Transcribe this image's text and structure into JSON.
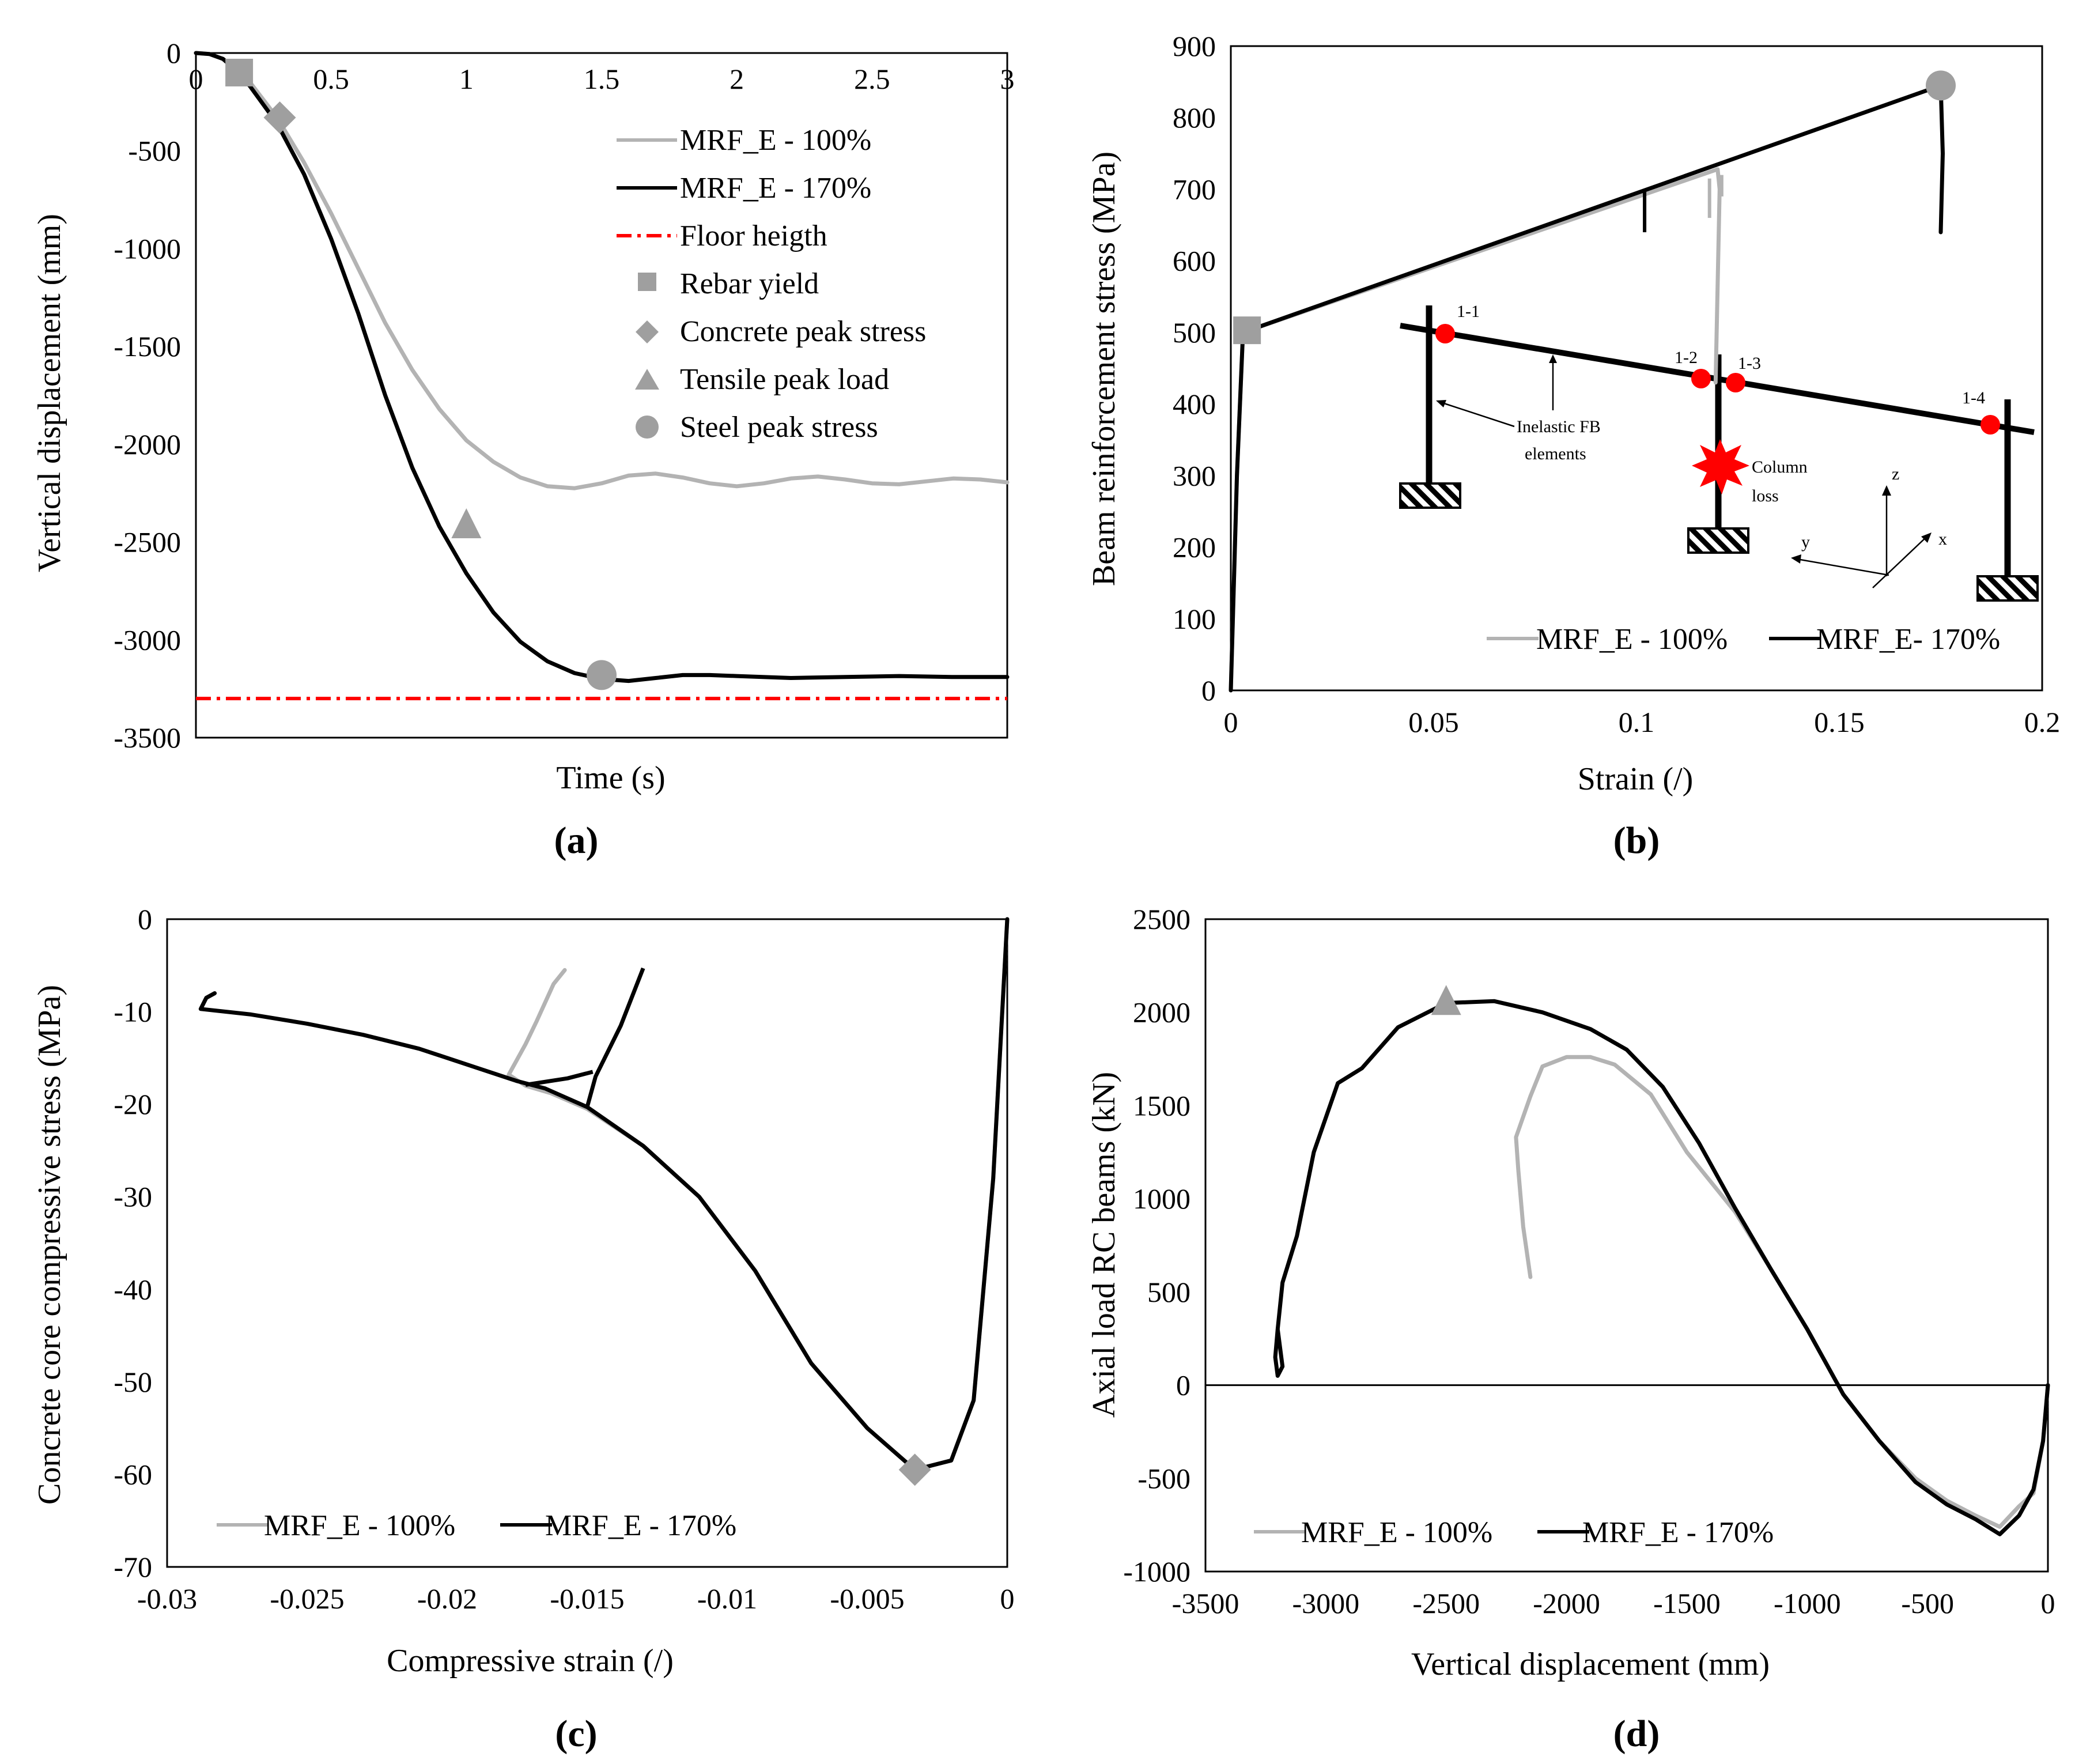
{
  "colors": {
    "series_100": "#b3b3b3",
    "series_170": "#000000",
    "floor": "#ff0000",
    "marker": "#9f9f9f",
    "inset_node": "#ff0000"
  },
  "chart_data": [
    {
      "id": "a",
      "type": "line",
      "caption": "(a)",
      "xlabel": "Time (s)",
      "ylabel": "Vertical displacement (mm)",
      "xlim": [
        0,
        3
      ],
      "ylim": [
        -3500,
        0
      ],
      "xticks": [
        "0",
        "0.5",
        "1",
        "1.5",
        "2",
        "2.5",
        "3"
      ],
      "yticks": [
        "0",
        "-500",
        "-1000",
        "-1500",
        "-2000",
        "-2500",
        "-3000",
        "-3500"
      ],
      "legend": [
        "MRF_E - 100%",
        "MRF_E - 170%",
        "Floor heigth",
        "Rebar yield",
        "Concrete peak stress",
        "Tensile peak load",
        "Steel peak stress"
      ],
      "series": [
        {
          "name": "MRF_E - 100%",
          "points": [
            [
              0,
              0
            ],
            [
              0.05,
              -5
            ],
            [
              0.1,
              -30
            ],
            [
              0.15,
              -80
            ],
            [
              0.2,
              -150
            ],
            [
              0.3,
              -330
            ],
            [
              0.4,
              -560
            ],
            [
              0.5,
              -820
            ],
            [
              0.6,
              -1100
            ],
            [
              0.7,
              -1380
            ],
            [
              0.8,
              -1620
            ],
            [
              0.9,
              -1820
            ],
            [
              1.0,
              -1980
            ],
            [
              1.1,
              -2090
            ],
            [
              1.2,
              -2170
            ],
            [
              1.3,
              -2215
            ],
            [
              1.4,
              -2225
            ],
            [
              1.5,
              -2200
            ],
            [
              1.6,
              -2160
            ],
            [
              1.7,
              -2150
            ],
            [
              1.8,
              -2170
            ],
            [
              1.9,
              -2200
            ],
            [
              2.0,
              -2215
            ],
            [
              2.1,
              -2200
            ],
            [
              2.2,
              -2175
            ],
            [
              2.3,
              -2165
            ],
            [
              2.4,
              -2180
            ],
            [
              2.5,
              -2200
            ],
            [
              2.6,
              -2205
            ],
            [
              2.7,
              -2190
            ],
            [
              2.8,
              -2175
            ],
            [
              2.9,
              -2180
            ],
            [
              3.0,
              -2195
            ]
          ]
        },
        {
          "name": "MRF_E - 170%",
          "points": [
            [
              0,
              0
            ],
            [
              0.05,
              -5
            ],
            [
              0.1,
              -30
            ],
            [
              0.15,
              -90
            ],
            [
              0.2,
              -170
            ],
            [
              0.3,
              -360
            ],
            [
              0.4,
              -620
            ],
            [
              0.5,
              -950
            ],
            [
              0.6,
              -1330
            ],
            [
              0.7,
              -1750
            ],
            [
              0.8,
              -2120
            ],
            [
              0.9,
              -2420
            ],
            [
              1.0,
              -2660
            ],
            [
              1.1,
              -2860
            ],
            [
              1.2,
              -3010
            ],
            [
              1.3,
              -3110
            ],
            [
              1.4,
              -3170
            ],
            [
              1.5,
              -3200
            ],
            [
              1.6,
              -3210
            ],
            [
              1.7,
              -3195
            ],
            [
              1.8,
              -3180
            ],
            [
              1.9,
              -3180
            ],
            [
              2.0,
              -3185
            ],
            [
              2.2,
              -3195
            ],
            [
              2.4,
              -3190
            ],
            [
              2.6,
              -3185
            ],
            [
              2.8,
              -3190
            ],
            [
              3.0,
              -3190
            ]
          ]
        }
      ],
      "floor_level": -3300,
      "markers": [
        {
          "name": "Rebar yield",
          "shape": "square",
          "x": 0.16,
          "y": -100
        },
        {
          "name": "Concrete peak stress",
          "shape": "diamond",
          "x": 0.31,
          "y": -330
        },
        {
          "name": "Tensile peak load",
          "shape": "triangle",
          "x": 1.0,
          "y": -2410
        },
        {
          "name": "Steel peak stress",
          "shape": "circle",
          "x": 1.5,
          "y": -3180
        }
      ]
    },
    {
      "id": "b",
      "type": "line",
      "caption": "(b)",
      "xlabel": "Strain (/)",
      "ylabel": "Beam reinforcement stress (MPa)",
      "xlim": [
        0,
        0.2
      ],
      "ylim": [
        0,
        900
      ],
      "xticks": [
        "0",
        "0.05",
        "0.1",
        "0.15",
        "0.2"
      ],
      "yticks": [
        "0",
        "100",
        "200",
        "300",
        "400",
        "500",
        "600",
        "700",
        "800",
        "900"
      ],
      "legend": [
        "MRF_E - 100%",
        "MRF_E- 170%"
      ],
      "series": [
        {
          "name": "MRF_E - 100%",
          "points": [
            [
              0,
              0
            ],
            [
              0.0015,
              300
            ],
            [
              0.003,
              500
            ],
            [
              0.12,
              728
            ],
            [
              0.1205,
              700
            ],
            [
              0.1195,
              430
            ]
          ]
        },
        {
          "name": "MRF_E- 170%",
          "points": [
            [
              0,
              0
            ],
            [
              0.0015,
              300
            ],
            [
              0.003,
              500
            ],
            [
              0.175,
              845
            ],
            [
              0.1755,
              750
            ],
            [
              0.175,
              640
            ]
          ]
        }
      ],
      "spikes_100": [
        [
          0.118,
          715,
          660
        ],
        [
          0.121,
          720,
          690
        ]
      ],
      "spikes_170": [
        [
          0.102,
          700,
          640
        ]
      ],
      "markers": [
        {
          "name": "Rebar yield",
          "shape": "square",
          "x": 0.004,
          "y": 503
        },
        {
          "name": "Steel peak stress",
          "shape": "circle",
          "x": 0.175,
          "y": 845
        }
      ],
      "inset": {
        "node_labels": [
          "1-1",
          "1-2",
          "1-3",
          "1-4"
        ],
        "element_label": "Inelastic FB elements",
        "loss_label": "Column loss",
        "axes_labels": [
          "z",
          "y",
          "x"
        ]
      }
    },
    {
      "id": "c",
      "type": "line",
      "caption": "(c)",
      "xlabel": "Compressive strain (/)",
      "ylabel": "Concrete core compressive stress (MPa)",
      "xlim": [
        -0.03,
        0
      ],
      "ylim": [
        -70,
        0
      ],
      "xticks": [
        "-0.03",
        "-0.025",
        "-0.02",
        "-0.015",
        "-0.01",
        "-0.005",
        "0"
      ],
      "yticks": [
        "0",
        "-10",
        "-20",
        "-30",
        "-40",
        "-50",
        "-60",
        "-70"
      ],
      "legend": [
        "MRF_E - 100%",
        "MRF_E - 170%"
      ],
      "series": [
        {
          "name": "MRF_E - 100%",
          "points": [
            [
              0,
              0
            ],
            [
              -0.0005,
              -28
            ],
            [
              -0.0012,
              -52
            ],
            [
              -0.002,
              -58.5
            ],
            [
              -0.0033,
              -59.5
            ],
            [
              -0.005,
              -55
            ],
            [
              -0.007,
              -48
            ],
            [
              -0.009,
              -38
            ],
            [
              -0.011,
              -30
            ],
            [
              -0.013,
              -24.5
            ],
            [
              -0.015,
              -20.5
            ],
            [
              -0.0163,
              -18.8
            ],
            [
              -0.0172,
              -18
            ],
            [
              -0.0178,
              -16.8
            ],
            [
              -0.0172,
              -13.5
            ],
            [
              -0.0168,
              -11
            ],
            [
              -0.0162,
              -7
            ],
            [
              -0.0158,
              -5.5
            ]
          ]
        },
        {
          "name": "MRF_E - 170%",
          "points": [
            [
              0,
              0
            ],
            [
              -0.0005,
              -28
            ],
            [
              -0.0012,
              -52
            ],
            [
              -0.002,
              -58.5
            ],
            [
              -0.0033,
              -59.5
            ],
            [
              -0.005,
              -55
            ],
            [
              -0.007,
              -48
            ],
            [
              -0.009,
              -38
            ],
            [
              -0.011,
              -30
            ],
            [
              -0.013,
              -24.5
            ],
            [
              -0.015,
              -20.3
            ],
            [
              -0.0165,
              -18.3
            ],
            [
              -0.0175,
              -17.5
            ],
            [
              -0.019,
              -16
            ],
            [
              -0.021,
              -14
            ],
            [
              -0.023,
              -12.5
            ],
            [
              -0.025,
              -11.3
            ],
            [
              -0.027,
              -10.3
            ],
            [
              -0.0288,
              -9.7
            ],
            [
              -0.0286,
              -8.5
            ],
            [
              -0.0283,
              -8
            ]
          ]
        }
      ],
      "branches_170": [
        [
          [
            -0.015,
            -20.3
          ],
          [
            -0.0147,
            -17
          ],
          [
            -0.0138,
            -11.5
          ],
          [
            -0.013,
            -5.3
          ]
        ],
        [
          [
            -0.0172,
            -17.9
          ],
          [
            -0.0157,
            -17.2
          ],
          [
            -0.0148,
            -16.5
          ]
        ]
      ],
      "markers": [
        {
          "name": "Concrete peak stress",
          "shape": "diamond",
          "x": -0.0033,
          "y": -59.5
        }
      ]
    },
    {
      "id": "d",
      "type": "line",
      "caption": "(d)",
      "xlabel": "Vertical displacement (mm)",
      "ylabel": "Axial load RC beams (kN)",
      "xlim": [
        -3500,
        0
      ],
      "ylim": [
        -1000,
        2500
      ],
      "xticks": [
        "-3500",
        "-3000",
        "-2500",
        "-2000",
        "-1500",
        "-1000",
        "-500",
        "0"
      ],
      "yticks": [
        "2500",
        "2000",
        "1500",
        "1000",
        "500",
        "0",
        "-500",
        "-1000"
      ],
      "legend": [
        "MRF_E - 100%",
        "MRF_E - 170%"
      ],
      "series": [
        {
          "name": "MRF_E - 100%",
          "points": [
            [
              0,
              0
            ],
            [
              -20,
              -300
            ],
            [
              -60,
              -580
            ],
            [
              -120,
              -650
            ],
            [
              -200,
              -760
            ],
            [
              -300,
              -700
            ],
            [
              -420,
              -620
            ],
            [
              -550,
              -500
            ],
            [
              -700,
              -300
            ],
            [
              -850,
              -50
            ],
            [
              -1000,
              300
            ],
            [
              -1150,
              620
            ],
            [
              -1300,
              930
            ],
            [
              -1500,
              1250
            ],
            [
              -1650,
              1560
            ],
            [
              -1800,
              1720
            ],
            [
              -1900,
              1760
            ],
            [
              -2000,
              1760
            ],
            [
              -2100,
              1710
            ],
            [
              -2150,
              1550
            ],
            [
              -2210,
              1330
            ],
            [
              -2200,
              1150
            ],
            [
              -2180,
              850
            ],
            [
              -2150,
              580
            ]
          ]
        },
        {
          "name": "MRF_E - 170%",
          "points": [
            [
              0,
              0
            ],
            [
              -20,
              -300
            ],
            [
              -60,
              -560
            ],
            [
              -120,
              -700
            ],
            [
              -200,
              -800
            ],
            [
              -300,
              -720
            ],
            [
              -420,
              -640
            ],
            [
              -550,
              -520
            ],
            [
              -700,
              -300
            ],
            [
              -850,
              -50
            ],
            [
              -1000,
              300
            ],
            [
              -1150,
              620
            ],
            [
              -1300,
              950
            ],
            [
              -1450,
              1300
            ],
            [
              -1600,
              1600
            ],
            [
              -1750,
              1800
            ],
            [
              -1900,
              1910
            ],
            [
              -2100,
              2000
            ],
            [
              -2300,
              2060
            ],
            [
              -2500,
              2050
            ],
            [
              -2700,
              1920
            ],
            [
              -2850,
              1700
            ],
            [
              -2950,
              1620
            ],
            [
              -3050,
              1250
            ],
            [
              -3120,
              800
            ],
            [
              -3180,
              550
            ],
            [
              -3200,
              300
            ],
            [
              -3180,
              100
            ],
            [
              -3200,
              50
            ],
            [
              -3210,
              150
            ],
            [
              -3200,
              300
            ]
          ]
        }
      ],
      "markers": [
        {
          "name": "Tensile peak load",
          "shape": "triangle",
          "x": -2500,
          "y": 2060
        }
      ]
    }
  ]
}
